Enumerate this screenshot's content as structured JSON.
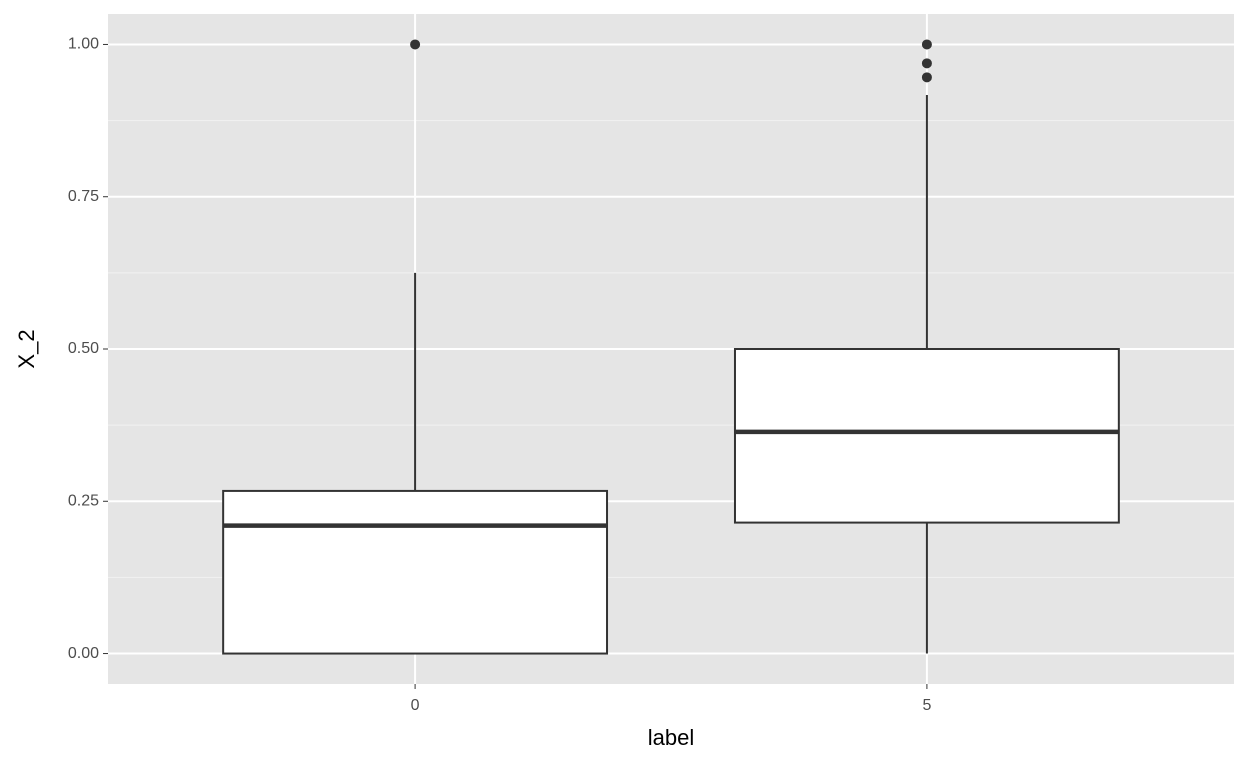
{
  "chart_data": {
    "type": "boxplot",
    "x_label": "label",
    "y_label": "X_2",
    "categories": [
      "0",
      "5"
    ],
    "boxes": [
      {
        "min": 0,
        "q1": 0,
        "median": 0.21,
        "q3": 0.267,
        "max": 0.625,
        "outliers": [
          1.0
        ]
      },
      {
        "min": 0,
        "q1": 0.215,
        "median": 0.364,
        "q3": 0.5,
        "max": 0.917,
        "outliers": [
          1.0,
          0.969,
          0.946
        ]
      }
    ],
    "ylim": [
      -0.05,
      1.05
    ],
    "yticks": [
      {
        "value": 0,
        "label": "0.00"
      },
      0.25,
      {
        "value": 0.5,
        "label": "0.50"
      },
      0.75,
      {
        "value": 1,
        "label": "1.00"
      }
    ],
    "grid": true,
    "box_fill": "#ffffff",
    "line_color": "#333333",
    "panel_color": "#e5e5e5"
  }
}
